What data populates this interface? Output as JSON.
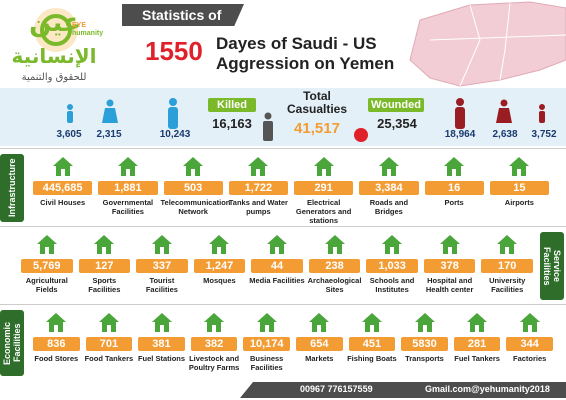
{
  "header": {
    "banner": "Statistics of",
    "days": "1550",
    "title_lines": [
      "Dayes of Saudi - US",
      "Aggression on Yemen"
    ]
  },
  "logo": {
    "arabic_name": "عين",
    "eye": "EYE",
    "humanity": "humanity",
    "arabic_subtitle": "الإنسانية",
    "arabic_tagline": "للحقوق والتنمية"
  },
  "casualties": {
    "killed": {
      "label": "Killed",
      "total": "16,163",
      "breakdown": [
        "3,605",
        "2,315",
        "10,243"
      ]
    },
    "total": {
      "label": "Total Casualties",
      "value": "41,517"
    },
    "wounded": {
      "label": "Wounded",
      "total": "25,354",
      "breakdown": [
        "18,964",
        "2,638",
        "3,752"
      ]
    }
  },
  "sections": [
    {
      "title": "Infrastructure",
      "items": [
        {
          "value": "445,685",
          "label": "Civil Houses"
        },
        {
          "value": "1,881",
          "label": "Governmental Facilities"
        },
        {
          "value": "503",
          "label": "Telecommunication Network"
        },
        {
          "value": "1,722",
          "label": "Tanks and Water pumps"
        },
        {
          "value": "291",
          "label": "Electrical Generators and stations"
        },
        {
          "value": "3,384",
          "label": "Roads and Bridges"
        },
        {
          "value": "16",
          "label": "Ports"
        },
        {
          "value": "15",
          "label": "Airports"
        }
      ]
    },
    {
      "title": "Service Facilities",
      "items": [
        {
          "value": "5,769",
          "label": "Agricultural Fields"
        },
        {
          "value": "127",
          "label": "Sports Facilities"
        },
        {
          "value": "337",
          "label": "Tourist Facilities"
        },
        {
          "value": "1,247",
          "label": "Mosques"
        },
        {
          "value": "44",
          "label": "Media Facilities"
        },
        {
          "value": "238",
          "label": "Archaeological Sites"
        },
        {
          "value": "1,033",
          "label": "Schools and Institutes"
        },
        {
          "value": "378",
          "label": "Hospital and Health center"
        },
        {
          "value": "170",
          "label": "University Facilities"
        }
      ]
    },
    {
      "title": "Economic Facilities",
      "items": [
        {
          "value": "836",
          "label": "Food Stores"
        },
        {
          "value": "701",
          "label": "Food Tankers"
        },
        {
          "value": "381",
          "label": "Fuel Stations"
        },
        {
          "value": "382",
          "label": "Livestock and Poultry Farms"
        },
        {
          "value": "10,174",
          "label": "Business Facilities"
        },
        {
          "value": "654",
          "label": "Markets"
        },
        {
          "value": "451",
          "label": "Fishing Boats"
        },
        {
          "value": "5830",
          "label": "Transports"
        },
        {
          "value": "281",
          "label": "Fuel Tankers"
        },
        {
          "value": "344",
          "label": "Factories"
        }
      ]
    }
  ],
  "footer": {
    "phone": "00967 776157559",
    "email": "Gmail.com@yehumanity2018"
  }
}
